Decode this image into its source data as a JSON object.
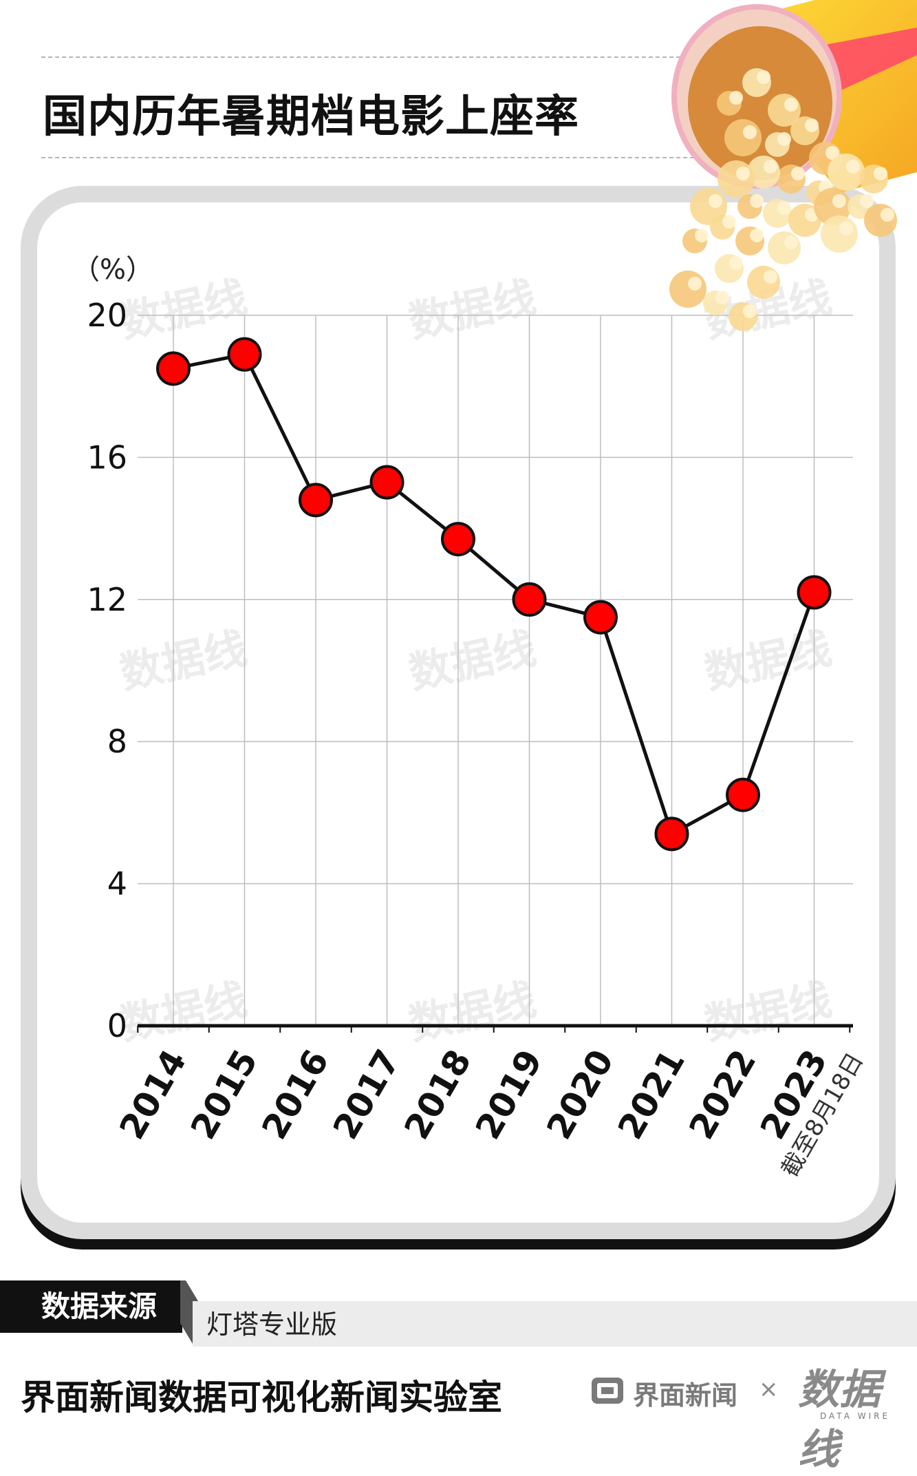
{
  "header": {
    "title": "国内历年暑期档电影上座率"
  },
  "chart_data": {
    "type": "line",
    "title": "国内历年暑期档电影上座率",
    "ylabel": "（%）",
    "xlabel": "",
    "categories": [
      "2014",
      "2015",
      "2016",
      "2017",
      "2018",
      "2019",
      "2020",
      "2021",
      "2022",
      "2023"
    ],
    "series": [
      {
        "name": "",
        "values": [
          18.5,
          18.9,
          14.8,
          15.3,
          13.7,
          12.0,
          11.5,
          5.4,
          6.5,
          12.2
        ]
      }
    ],
    "ylim": [
      0,
      20
    ],
    "yticks": [
      0,
      4,
      8,
      12,
      16,
      20
    ],
    "annotations": [
      {
        "category": "2023",
        "text": "截至8月18日"
      }
    ],
    "grid": true,
    "line_color": "#111111",
    "marker_color": "#ff0000",
    "watermark": "数据线"
  },
  "source": {
    "label": "数据来源",
    "value": "灯塔专业版"
  },
  "footer": {
    "text": "界面新闻数据可视化新闻实验室",
    "brand": "界面新闻",
    "times": "×",
    "partner": "数据线",
    "partner_sub": "DATA WIRE"
  }
}
